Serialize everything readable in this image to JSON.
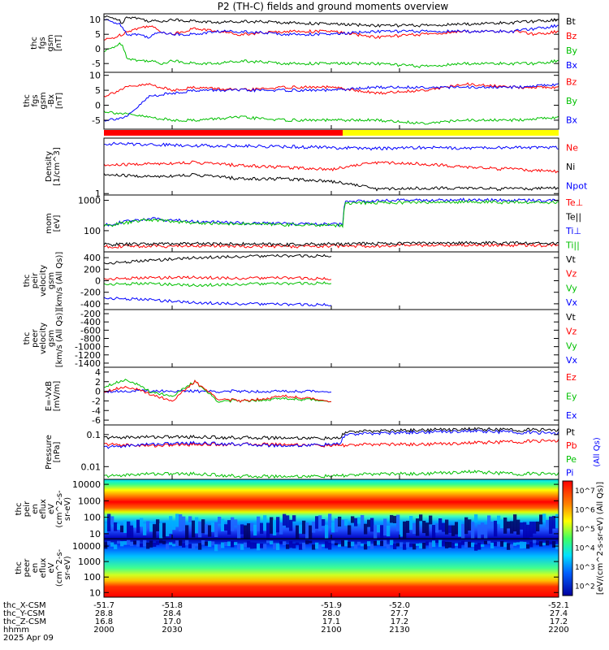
{
  "title": "P2 (TH-C) fields and ground moments overview",
  "chart_data": [
    {
      "id": "fgs_gsm",
      "type": "line",
      "ylabel": [
        "thc",
        "fgs",
        "gsm",
        "[nT]"
      ],
      "yticks": [
        10,
        5,
        0,
        -5
      ],
      "ylim": [
        -8,
        12
      ],
      "legend": [
        {
          "name": "Bt",
          "color": "#000000"
        },
        {
          "name": "Bz",
          "color": "#ff0000"
        },
        {
          "name": "By",
          "color": "#00c000"
        },
        {
          "name": "Bx",
          "color": "#0000ff"
        }
      ],
      "series": [
        {
          "name": "Bt",
          "color": "#000000",
          "x": [
            2000,
            2005,
            2008,
            2010,
            2015,
            2020,
            2025,
            2030,
            2040,
            2050,
            2060,
            2080,
            2100,
            2120,
            2140,
            2160,
            2180,
            2190,
            2200
          ],
          "values": [
            11,
            10.5,
            9,
            11,
            10.5,
            9.5,
            9.5,
            10,
            9.5,
            9,
            9.5,
            9,
            8.5,
            8,
            8,
            8.5,
            9,
            9.5,
            10
          ]
        },
        {
          "name": "Bz",
          "color": "#ff0000",
          "x": [
            2000,
            2005,
            2008,
            2010,
            2015,
            2020,
            2025,
            2030,
            2040,
            2050,
            2060,
            2080,
            2100,
            2120,
            2140,
            2160,
            2180,
            2190,
            2200
          ],
          "values": [
            3,
            4,
            5,
            6,
            7,
            8,
            6,
            5,
            7,
            6,
            5,
            6,
            6,
            4,
            5,
            6,
            6,
            5,
            6
          ]
        },
        {
          "name": "By",
          "color": "#00c000",
          "x": [
            2000,
            2005,
            2008,
            2010,
            2015,
            2020,
            2025,
            2030,
            2040,
            2050,
            2060,
            2080,
            2100,
            2120,
            2140,
            2160,
            2180,
            2190,
            2200
          ],
          "values": [
            -1,
            1,
            2,
            -3,
            -4,
            -4,
            -5,
            -4,
            -5,
            -5,
            -4,
            -5,
            -5,
            -5,
            -6,
            -5,
            -5,
            -5,
            -4
          ]
        },
        {
          "name": "Bx",
          "color": "#0000ff",
          "x": [
            2000,
            2005,
            2008,
            2010,
            2015,
            2020,
            2025,
            2030,
            2040,
            2050,
            2060,
            2080,
            2100,
            2120,
            2140,
            2160,
            2180,
            2190,
            2200
          ],
          "values": [
            10,
            9,
            8,
            5,
            5,
            4,
            6,
            5,
            5,
            6,
            6,
            5,
            5,
            6,
            6,
            6,
            6,
            7,
            8
          ]
        }
      ]
    },
    {
      "id": "fgs_gse",
      "type": "line",
      "ylabel": [
        "thc",
        "fgs",
        "gsm",
        "-Bx",
        "[nT]"
      ],
      "yticks": [
        10,
        5,
        0,
        -5
      ],
      "ylim": [
        -8,
        11
      ],
      "legend": [
        {
          "name": "Bz",
          "color": "#ff0000"
        },
        {
          "name": "By",
          "color": "#00c000"
        },
        {
          "name": "Bx",
          "color": "#0000ff"
        }
      ],
      "series": [
        {
          "name": "Bz",
          "color": "#ff0000",
          "x": [
            2000,
            2010,
            2020,
            2030,
            2040,
            2060,
            2080,
            2100,
            2120,
            2140,
            2160,
            2180,
            2200
          ],
          "values": [
            3,
            6,
            7,
            5,
            6,
            5,
            6,
            6,
            4,
            5,
            7,
            6,
            6
          ]
        },
        {
          "name": "By",
          "color": "#00c000",
          "x": [
            2000,
            2010,
            2020,
            2030,
            2040,
            2060,
            2080,
            2100,
            2120,
            2140,
            2160,
            2180,
            2200
          ],
          "values": [
            -2,
            -3,
            -4,
            -5,
            -5,
            -4,
            -5,
            -5,
            -5,
            -6,
            -5,
            -5,
            -4
          ]
        },
        {
          "name": "Bx",
          "color": "#0000ff",
          "x": [
            2000,
            2010,
            2020,
            2030,
            2040,
            2060,
            2080,
            2100,
            2120,
            2140,
            2160,
            2180,
            2200
          ],
          "values": [
            -5,
            -4,
            3,
            4,
            5,
            5,
            5,
            5,
            6,
            6,
            6,
            6,
            7
          ]
        }
      ]
    },
    {
      "id": "density",
      "type": "line",
      "log": true,
      "ylabel": [
        "Density",
        "[1/cm^3]"
      ],
      "yticks": [
        1
      ],
      "ylim": [
        0.9,
        60
      ],
      "legend": [
        {
          "name": "Ne",
          "color": "#ff0000"
        },
        {
          "name": "Ni",
          "color": "#000000"
        },
        {
          "name": "Npot",
          "color": "#0000ff"
        }
      ],
      "series": [
        {
          "name": "Npot",
          "color": "#0000ff",
          "x": [
            2000,
            2020,
            2040,
            2060,
            2080,
            2100,
            2120,
            2140,
            2160,
            2180,
            2200
          ],
          "values": [
            40,
            38,
            35,
            34,
            32,
            30,
            28,
            30,
            29,
            30,
            30
          ]
        },
        {
          "name": "Ne",
          "color": "#ff0000",
          "x": [
            2000,
            2020,
            2040,
            2060,
            2080,
            2100,
            2120,
            2140,
            2160,
            2180,
            2200
          ],
          "values": [
            8,
            9,
            10,
            8,
            7,
            6,
            10,
            9,
            7,
            6,
            5
          ]
        },
        {
          "name": "Ni",
          "color": "#000000",
          "x": [
            2000,
            2020,
            2040,
            2060,
            2080,
            2100,
            2120,
            2140,
            2160,
            2180,
            2200
          ],
          "values": [
            4,
            3.5,
            4,
            3,
            3,
            2.5,
            1.4,
            1.5,
            1.5,
            1.4,
            1.5
          ]
        }
      ]
    },
    {
      "id": "temp",
      "type": "line",
      "log": true,
      "ylabel": [
        "mom",
        "[eV]"
      ],
      "yticks": [
        1000,
        100
      ],
      "ylim": [
        20,
        1500
      ],
      "legend": [
        {
          "name": "Te⊥",
          "color": "#ff0000"
        },
        {
          "name": "Te||",
          "color": "#000000"
        },
        {
          "name": "Ti⊥",
          "color": "#0000ff"
        },
        {
          "name": "Ti||",
          "color": "#00c000"
        }
      ],
      "series": [
        {
          "name": "Ti⊥",
          "color": "#0000ff",
          "x": [
            2000,
            2020,
            2040,
            2060,
            2080,
            2105,
            2106,
            2120,
            2140,
            2160,
            2180,
            2200
          ],
          "values": [
            150,
            250,
            200,
            180,
            170,
            160,
            900,
            1000,
            1000,
            1050,
            1000,
            1000
          ]
        },
        {
          "name": "Ti||",
          "color": "#00c000",
          "x": [
            2000,
            2020,
            2040,
            2060,
            2080,
            2105,
            2106,
            2120,
            2140,
            2160,
            2180,
            2200
          ],
          "values": [
            140,
            230,
            180,
            170,
            160,
            150,
            800,
            850,
            850,
            900,
            850,
            850
          ]
        },
        {
          "name": "Te⊥",
          "color": "#ff0000",
          "x": [
            2000,
            2040,
            2080,
            2120,
            2160,
            2200
          ],
          "values": [
            30,
            32,
            30,
            32,
            34,
            33
          ]
        },
        {
          "name": "Te||",
          "color": "#000000",
          "x": [
            2000,
            2040,
            2080,
            2120,
            2160,
            2200
          ],
          "values": [
            35,
            38,
            35,
            38,
            40,
            38
          ]
        }
      ]
    },
    {
      "id": "peir_velocity",
      "type": "line",
      "ylabel": [
        "thc",
        "peir",
        "velocity",
        "gsm",
        "[km/s (All Qs)]"
      ],
      "yticks": [
        400,
        200,
        0,
        -200,
        -400
      ],
      "ylim": [
        -500,
        500
      ],
      "legend": [
        {
          "name": "Vt",
          "color": "#000000"
        },
        {
          "name": "Vz",
          "color": "#ff0000"
        },
        {
          "name": "Vy",
          "color": "#00c000"
        },
        {
          "name": "Vx",
          "color": "#0000ff"
        }
      ],
      "series": [
        {
          "name": "Vt",
          "color": "#000000",
          "x": [
            2000,
            2020,
            2040,
            2060,
            2080,
            2100
          ],
          "values": [
            300,
            350,
            400,
            420,
            430,
            430
          ]
        },
        {
          "name": "Vz",
          "color": "#ff0000",
          "x": [
            2000,
            2020,
            2040,
            2060,
            2080,
            2100
          ],
          "values": [
            30,
            50,
            60,
            40,
            50,
            30
          ]
        },
        {
          "name": "Vy",
          "color": "#00c000",
          "x": [
            2000,
            2020,
            2040,
            2060,
            2080,
            2100
          ],
          "values": [
            -60,
            -50,
            -80,
            -60,
            -50,
            -40
          ]
        },
        {
          "name": "Vx",
          "color": "#0000ff",
          "x": [
            2000,
            2020,
            2040,
            2060,
            2080,
            2100
          ],
          "values": [
            -300,
            -330,
            -380,
            -400,
            -410,
            -420
          ]
        }
      ]
    },
    {
      "id": "peer_velocity",
      "type": "line",
      "ylabel": [
        "thc",
        "peer",
        "velocity",
        "gsm",
        "[km/s (All Qs)]"
      ],
      "yticks": [
        -200,
        -400,
        -600,
        -800,
        -1000,
        -1200,
        -1400
      ],
      "ylim": [
        -1500,
        -100
      ],
      "legend": [
        {
          "name": "Vt",
          "color": "#000000"
        },
        {
          "name": "Vz",
          "color": "#ff0000"
        },
        {
          "name": "Vy",
          "color": "#00c000"
        },
        {
          "name": "Vx",
          "color": "#0000ff"
        }
      ],
      "series": []
    },
    {
      "id": "efield",
      "type": "line",
      "ylabel": [
        "E=-VxB",
        "[mV/m]"
      ],
      "yticks": [
        4,
        2,
        0,
        -2,
        -4,
        -6
      ],
      "ylim": [
        -7,
        5
      ],
      "legend": [
        {
          "name": "Ez",
          "color": "#ff0000"
        },
        {
          "name": "Ey",
          "color": "#00c000"
        },
        {
          "name": "Ex",
          "color": "#0000ff"
        }
      ],
      "series": [
        {
          "name": "Ex",
          "color": "#0000ff",
          "x": [
            2000,
            2020,
            2040,
            2060,
            2080,
            2100
          ],
          "values": [
            0,
            0.1,
            0,
            0,
            0,
            0
          ]
        },
        {
          "name": "Ey",
          "color": "#00c000",
          "x": [
            2000,
            2010,
            2020,
            2030,
            2040,
            2050,
            2060,
            2080,
            2100
          ],
          "values": [
            1,
            2.5,
            0,
            -1,
            2,
            -2,
            -2,
            -1.5,
            -2
          ]
        },
        {
          "name": "Ez",
          "color": "#ff0000",
          "x": [
            2000,
            2010,
            2020,
            2030,
            2040,
            2050,
            2060,
            2080,
            2100
          ],
          "values": [
            0,
            1,
            -0.5,
            -2,
            2,
            -1.5,
            -2,
            -1,
            -2
          ]
        }
      ]
    },
    {
      "id": "pressure",
      "type": "line",
      "log": true,
      "ylabel": [
        "Pressure",
        "[nPa]"
      ],
      "yticks": [
        0.1,
        0.01
      ],
      "ylim": [
        0.004,
        0.2
      ],
      "legend": [
        {
          "name": "Pt",
          "color": "#000000"
        },
        {
          "name": "Pb",
          "color": "#ff0000"
        },
        {
          "name": "Pe",
          "color": "#00c000"
        },
        {
          "name": "Pi",
          "color": "#0000ff"
        }
      ],
      "right_note": "(All Qs)",
      "series": [
        {
          "name": "Pt",
          "color": "#000000",
          "x": [
            2000,
            2020,
            2040,
            2060,
            2080,
            2104,
            2106,
            2120,
            2140,
            2160,
            2180,
            2200
          ],
          "values": [
            0.08,
            0.085,
            0.085,
            0.08,
            0.08,
            0.075,
            0.12,
            0.13,
            0.14,
            0.15,
            0.14,
            0.14
          ]
        },
        {
          "name": "Pb",
          "color": "#ff0000",
          "x": [
            2000,
            2020,
            2040,
            2060,
            2080,
            2100,
            2120,
            2140,
            2160,
            2180,
            2200
          ],
          "values": [
            0.05,
            0.045,
            0.05,
            0.05,
            0.05,
            0.045,
            0.05,
            0.05,
            0.055,
            0.06,
            0.065
          ]
        },
        {
          "name": "Pi",
          "color": "#0000ff",
          "x": [
            2000,
            2020,
            2040,
            2060,
            2080,
            2104,
            2106,
            2120,
            2140,
            2160,
            2180,
            2200
          ],
          "values": [
            0.04,
            0.05,
            0.055,
            0.05,
            0.045,
            0.05,
            0.1,
            0.11,
            0.12,
            0.13,
            0.12,
            0.11
          ]
        },
        {
          "name": "Pe",
          "color": "#00c000",
          "x": [
            2000,
            2020,
            2040,
            2060,
            2080,
            2100,
            2120,
            2140,
            2160,
            2180,
            2200
          ],
          "values": [
            0.005,
            0.006,
            0.006,
            0.005,
            0.005,
            0.005,
            0.006,
            0.006,
            0.007,
            0.006,
            0.006
          ]
        }
      ]
    },
    {
      "id": "peir_spec",
      "type": "heatmap",
      "ylabel": [
        "thc",
        "peir",
        "en",
        "eflux",
        "eV",
        "(cm^2-s-",
        "sr-eV)"
      ],
      "yticks": [
        10000,
        1000,
        100,
        10
      ],
      "ylim": [
        5,
        20000
      ],
      "colorbar": {
        "label": "[eV/(cm^2-s-sr-eV) (All Qs)]",
        "ticks": [
          "10^2",
          "10^3",
          "10^4",
          "10^5",
          "10^6",
          "10^7"
        ]
      }
    },
    {
      "id": "peer_spec",
      "type": "heatmap",
      "ylabel": [
        "thc",
        "peer",
        "en",
        "eflux",
        "eV",
        "(cm^2-s-",
        "sr-eV)"
      ],
      "yticks": [
        10000,
        1000,
        100,
        10
      ],
      "ylim": [
        5,
        30000
      ]
    }
  ],
  "xaxis": {
    "range": [
      2000,
      2200
    ],
    "tick_columns": [
      {
        "x_csm": "-51.7",
        "y_csm": "28.8",
        "z_csm": "16.8",
        "hhmm": "2000"
      },
      {
        "x_csm": "-51.8",
        "y_csm": "28.4",
        "z_csm": "17.0",
        "hhmm": "2030"
      },
      {
        "x_csm": "-51.9",
        "y_csm": "28.0",
        "z_csm": "17.1",
        "hhmm": "2100"
      },
      {
        "x_csm": "-52.0",
        "y_csm": "27.7",
        "z_csm": "17.2",
        "hhmm": "2130"
      },
      {
        "x_csm": "-52.1",
        "y_csm": "27.4",
        "z_csm": "17.2",
        "hhmm": "2200"
      }
    ],
    "row_labels": [
      "thc_X-CSM",
      "thc_Y-CSM",
      "thc_Z-CSM",
      "hhmm",
      "2025 Apr 09"
    ]
  },
  "mode_bar": [
    {
      "from": 2000,
      "to": 2105,
      "color": "#ff0000"
    },
    {
      "from": 2105,
      "to": 2200,
      "color": "#ffff00"
    }
  ]
}
